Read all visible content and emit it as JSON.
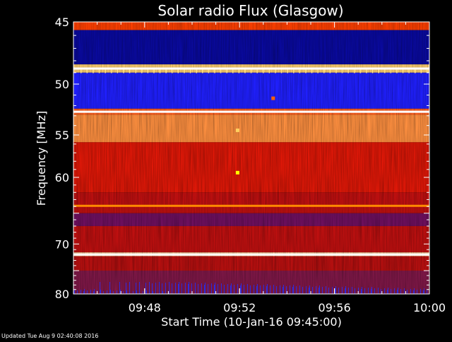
{
  "chart_data": {
    "type": "heatmap",
    "title": "Solar radio Flux (Glasgow)",
    "xlabel": "Start Time (10-Jan-16 09:45:00)",
    "ylabel": "Frequency [MHz]",
    "footer": "Updated Tue Aug  9 02:40:08 2016",
    "x_range": [
      "09:45",
      "10:00"
    ],
    "y_range": [
      45,
      80
    ],
    "y_scale": "reciprocal",
    "x_ticks": [
      "09:48",
      "09:52",
      "09:56",
      "10:00"
    ],
    "y_ticks": [
      45,
      50,
      55,
      60,
      70,
      80
    ],
    "grid": false,
    "background_color": "#000000",
    "text_color": "#ffffff",
    "colormap": [
      "#000030",
      "#0000c0",
      "#2020ff",
      "#800000",
      "#c00000",
      "#ff2000",
      "#ff8000",
      "#ffd060",
      "#ffffc0"
    ],
    "bands": [
      {
        "from": 45.0,
        "to": 45.6,
        "color": "#ff4000"
      },
      {
        "from": 45.6,
        "to": 48.3,
        "color": "#0a0aa0"
      },
      {
        "from": 48.3,
        "to": 49.0,
        "color": "#ffd070"
      },
      {
        "from": 49.0,
        "to": 52.3,
        "color": "#2020ff"
      },
      {
        "from": 52.3,
        "to": 52.9,
        "color": "#ff6020"
      },
      {
        "from": 52.9,
        "to": 55.8,
        "color": "#ff9040"
      },
      {
        "from": 55.8,
        "to": 62.0,
        "color": "#e01808"
      },
      {
        "from": 62.0,
        "to": 65.0,
        "color": "#c01010"
      },
      {
        "from": 65.0,
        "to": 67.0,
        "color": "#701060"
      },
      {
        "from": 67.0,
        "to": 71.5,
        "color": "#c01010"
      },
      {
        "from": 71.5,
        "to": 72.2,
        "color": "#ffd0a0"
      },
      {
        "from": 72.2,
        "to": 75.0,
        "color": "#b81010"
      },
      {
        "from": 75.0,
        "to": 80.0,
        "color": "#801848"
      }
    ],
    "lines": [
      {
        "freq": 48.65,
        "color": "#ffffff"
      },
      {
        "freq": 52.6,
        "color": "#ffffff"
      },
      {
        "freq": 63.9,
        "color": "#ff8a00"
      },
      {
        "freq": 71.9,
        "color": "#ffffff"
      }
    ],
    "hotspots": [
      {
        "time": "09:51:55",
        "freq": 59.4,
        "color": "#ffff00"
      },
      {
        "time": "09:51:55",
        "freq": 54.5,
        "color": "#ffd060"
      },
      {
        "time": "09:53:25",
        "freq": 51.3,
        "color": "#ff6000"
      }
    ]
  }
}
